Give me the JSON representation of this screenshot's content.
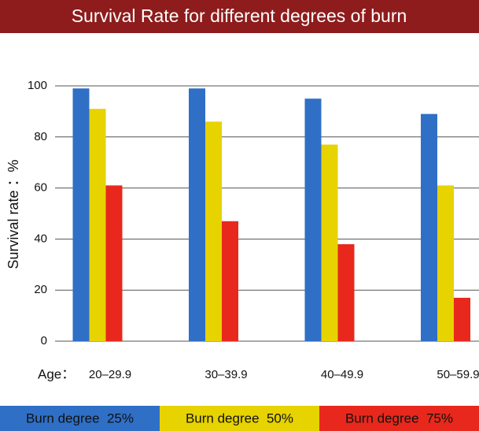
{
  "chart_data": {
    "type": "bar",
    "title": "Survival Rate for different degrees of burn",
    "y_label": "Survival rate ：%",
    "x_label": "Age：",
    "categories": [
      "20–29.9",
      "30–39.9",
      "40–49.9",
      "50–59.9"
    ],
    "series": [
      {
        "name": "Burn degree  25%",
        "color": "#2f6fc6",
        "values": [
          99,
          99,
          95,
          89
        ]
      },
      {
        "name": "Burn degree  50%",
        "color": "#e6d300",
        "values": [
          91,
          86,
          77,
          61
        ]
      },
      {
        "name": "Burn degree  75%",
        "color": "#e8281c",
        "values": [
          61,
          47,
          38,
          17
        ]
      }
    ],
    "ylim": [
      0,
      100
    ],
    "yticks": [
      0,
      20,
      40,
      60,
      80,
      100
    ],
    "grid": true,
    "legend": "bottom"
  }
}
